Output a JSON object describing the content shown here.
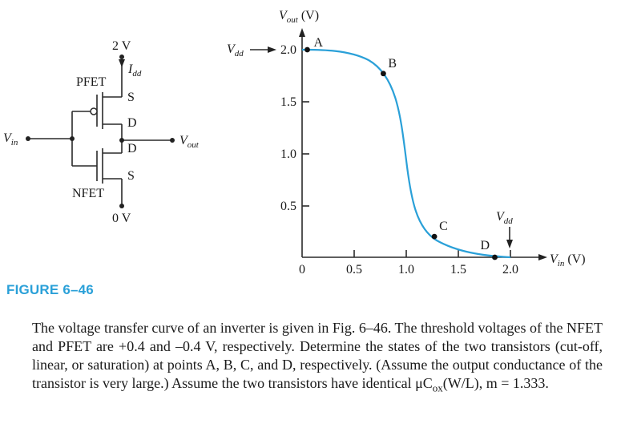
{
  "circuit": {
    "supply_label": "2 V",
    "ground_label": "0 V",
    "current_label": "I",
    "current_sub": "dd",
    "pfet_label": "PFET",
    "nfet_label": "NFET",
    "pfet_source": "S",
    "pfet_drain": "D",
    "nfet_drain": "D",
    "nfet_source": "S",
    "vin_label": "V",
    "vin_sub": "in",
    "vout_label": "V",
    "vout_sub": "out"
  },
  "plot": {
    "y_axis_label": "V",
    "y_axis_sub": "out",
    "y_axis_unit": " (V)",
    "x_axis_label": "V",
    "x_axis_sub": "in",
    "x_axis_unit": " (V)",
    "y_ticks": [
      "2.0",
      "1.5",
      "1.0",
      "0.5"
    ],
    "x_ticks": [
      "0",
      "0.5",
      "1.0",
      "1.5",
      "2.0"
    ],
    "vdd_y_label": "V",
    "vdd_y_sub": "dd",
    "vdd_x_label": "V",
    "vdd_x_sub": "dd",
    "points": [
      {
        "name": "A",
        "x": 0.05,
        "y": 2.0
      },
      {
        "name": "B",
        "x": 0.78,
        "y": 1.77
      },
      {
        "name": "C",
        "x": 1.27,
        "y": 0.2
      },
      {
        "name": "D",
        "x": 1.85,
        "y": 0.0
      }
    ]
  },
  "caption": "FIGURE 6–46",
  "problem": "The voltage transfer curve of an inverter is given in Fig. 6–46. The threshold voltages of the NFET and PFET are +0.4 and –0.4 V, respectively. Determine the states of the two transistors (cut-off, linear, or saturation) at points A, B, C, and D, respectively. (Assume the output conductance of the transistor is very large.) Assume the two transistors have identical μC",
  "problem_sub": "ox",
  "problem_tail": "(W/L), m = 1.333."
}
